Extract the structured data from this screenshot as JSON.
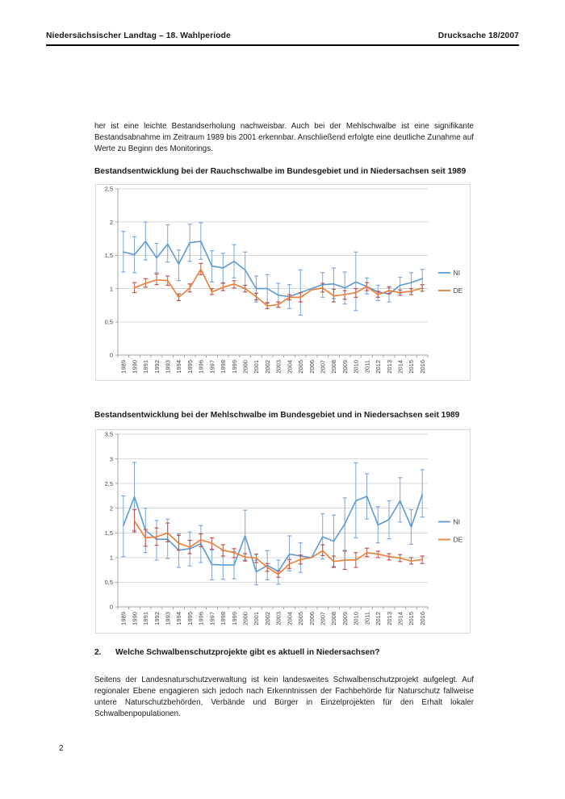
{
  "document": {
    "header_left": "Niedersächsischer Landtag – 18. Wahlperiode",
    "header_right": "Drucksache 18/2007",
    "intro_paragraph": "her ist eine leichte Bestandserholung nachweisbar. Auch bei der Mehlschwalbe ist eine signifikante Bestandsabnahme im Zeitraum 1989 bis 2001 erkennbar. Anschließend erfolgte eine deutliche Zunahme auf Werte zu Beginn des Monitorings.",
    "section2": {
      "number": "2.",
      "title": "Welche Schwalbenschutzprojekte gibt es aktuell in Niedersachsen?",
      "body": "Seitens der Landesnaturschutzverwaltung ist kein landesweites Schwalbenschutzprojekt aufgelegt. Auf regionaler Ebene engagieren sich jedoch nach Erkenntnissen der Fachbehörde für Naturschutz fallweise untere Naturschutzbehörden, Verbände und Bürger in Einzelprojekten für den Erhalt lokaler Schwalbenpopulationen."
    },
    "page_number": "2"
  },
  "colors": {
    "ni_line": "#5B9BD5",
    "ni_error": "#7EA6D8",
    "de_line": "#ED7D31",
    "de_error": "#C0504D",
    "grid": "#D9D9D9",
    "axis": "#A6A6A6",
    "chart_border": "#D9D9D9",
    "chart_text": "#404040",
    "text": "#1A1A1A"
  },
  "chart_data": [
    {
      "type": "line",
      "title": "Bestandsentwicklung bei der Rauchschwalbe im Bundesgebiet und in Niedersachsen seit 1989",
      "grid": true,
      "error_bars": true,
      "legend_position": "right",
      "ylim": [
        0,
        2.5
      ],
      "ytick_step": 0.5,
      "ytick_labels": [
        "0",
        "0,5",
        "1",
        "1,5",
        "2",
        "2,5"
      ],
      "categories": [
        "1989",
        "1990",
        "1991",
        "1992",
        "1993",
        "1994",
        "1995",
        "1996",
        "1997",
        "1998",
        "1999",
        "2000",
        "2001",
        "2002",
        "2003",
        "2004",
        "2005",
        "2006",
        "2007",
        "2008",
        "2009",
        "2010",
        "2011",
        "2012",
        "2013",
        "2014",
        "2015",
        "2016"
      ],
      "series": [
        {
          "name": "NI",
          "color": "#5B9BD5",
          "error_color": "#7EA6D8",
          "values": [
            1.55,
            1.51,
            1.71,
            1.46,
            1.67,
            1.37,
            1.69,
            1.71,
            1.34,
            1.31,
            1.41,
            1.28,
            1.0,
            1.0,
            0.9,
            0.88,
            0.94,
            1.0,
            1.06,
            1.07,
            1.01,
            1.1,
            1.03,
            0.95,
            0.92,
            1.05,
            1.09,
            1.15
          ],
          "lo": [
            1.25,
            1.24,
            1.43,
            1.24,
            1.4,
            1.12,
            1.41,
            1.44,
            1.1,
            1.09,
            1.16,
            1.0,
            0.8,
            0.78,
            0.72,
            0.7,
            0.6,
            null,
            0.87,
            0.85,
            0.77,
            0.67,
            0.92,
            0.82,
            0.8,
            0.93,
            0.95,
            1.0
          ],
          "hi": [
            1.86,
            1.78,
            2.0,
            1.68,
            1.96,
            1.58,
            1.97,
            1.99,
            1.57,
            1.53,
            1.66,
            1.55,
            1.19,
            1.21,
            1.08,
            1.06,
            1.28,
            null,
            1.24,
            1.31,
            1.25,
            1.55,
            1.16,
            1.05,
            1.03,
            1.17,
            1.24,
            1.29
          ]
        },
        {
          "name": "DE",
          "color": "#ED7D31",
          "error_color": "#C0504D",
          "values": [
            null,
            1.01,
            1.08,
            1.13,
            1.12,
            0.87,
            1.01,
            1.29,
            0.95,
            1.02,
            1.07,
            1.0,
            0.88,
            0.74,
            0.76,
            0.87,
            0.87,
            0.98,
            1.01,
            0.89,
            0.91,
            0.94,
            1.03,
            0.91,
            0.97,
            0.94,
            0.96,
            1.01
          ],
          "lo": [
            null,
            0.94,
            1.02,
            1.06,
            1.05,
            0.82,
            0.95,
            1.21,
            0.91,
            0.97,
            1.01,
            0.95,
            0.83,
            0.7,
            0.72,
            0.83,
            0.8,
            null,
            0.95,
            0.8,
            0.84,
            0.87,
            0.97,
            0.87,
            0.92,
            0.9,
            0.91,
            0.96
          ],
          "hi": [
            null,
            1.09,
            1.15,
            1.22,
            1.19,
            0.92,
            1.07,
            1.38,
            1.0,
            1.08,
            1.12,
            1.05,
            0.93,
            0.79,
            0.8,
            0.91,
            0.94,
            null,
            1.08,
            0.99,
            0.97,
            1.0,
            1.09,
            0.96,
            1.02,
            0.98,
            1.0,
            1.06
          ]
        }
      ]
    },
    {
      "type": "line",
      "title": "Bestandsentwicklung bei der Mehlschwalbe im Bundesgebiet und in Niedersachsen seit 1989",
      "grid": true,
      "error_bars": true,
      "legend_position": "right",
      "ylim": [
        0,
        3.5
      ],
      "ytick_step": 0.5,
      "ytick_labels": [
        "0",
        "0,5",
        "1",
        "1,5",
        "2",
        "2,5",
        "3",
        "3,5"
      ],
      "categories": [
        "1989",
        "1990",
        "1991",
        "1992",
        "1993",
        "1994",
        "1995",
        "1996",
        "1997",
        "1998",
        "1999",
        "2000",
        "2001",
        "2002",
        "2003",
        "2004",
        "2005",
        "2006",
        "2007",
        "2008",
        "2009",
        "2010",
        "2011",
        "2012",
        "2013",
        "2014",
        "2015",
        "2016"
      ],
      "series": [
        {
          "name": "NI",
          "color": "#5B9BD5",
          "error_color": "#7EA6D8",
          "values": [
            1.65,
            2.23,
            1.55,
            1.37,
            1.37,
            1.15,
            1.18,
            1.28,
            0.86,
            0.85,
            0.85,
            1.44,
            0.71,
            0.84,
            0.72,
            1.07,
            1.03,
            1.0,
            1.42,
            1.33,
            1.68,
            2.15,
            2.24,
            1.66,
            1.77,
            2.15,
            1.62,
            2.28
          ],
          "lo": [
            1.02,
            1.55,
            1.1,
            0.95,
            0.98,
            0.8,
            0.83,
            0.9,
            0.55,
            0.56,
            0.57,
            0.95,
            0.45,
            0.55,
            0.46,
            0.73,
            0.7,
            null,
            0.97,
            0.82,
            1.15,
            1.4,
            1.78,
            1.3,
            1.38,
            1.72,
            1.27,
            1.82
          ],
          "hi": [
            2.25,
            2.93,
            2.0,
            1.75,
            1.78,
            1.48,
            1.52,
            1.65,
            1.15,
            1.14,
            1.12,
            1.96,
            0.95,
            1.14,
            0.95,
            1.44,
            1.3,
            null,
            1.89,
            1.86,
            2.21,
            2.92,
            2.7,
            2.03,
            2.15,
            2.62,
            1.97,
            2.78
          ]
        },
        {
          "name": "DE",
          "color": "#ED7D31",
          "error_color": "#C0504D",
          "values": [
            null,
            1.74,
            1.4,
            1.42,
            1.5,
            1.29,
            1.21,
            1.36,
            1.29,
            1.15,
            1.1,
            1.01,
            0.99,
            0.8,
            0.66,
            0.87,
            0.96,
            1.0,
            1.14,
            0.92,
            0.95,
            0.95,
            1.1,
            1.07,
            1.02,
            0.99,
            0.93,
            0.96
          ],
          "lo": [
            null,
            1.52,
            1.23,
            1.25,
            1.32,
            1.15,
            1.08,
            1.22,
            1.17,
            1.03,
            1.0,
            0.93,
            0.9,
            0.72,
            0.6,
            0.78,
            0.87,
            null,
            1.04,
            0.8,
            0.76,
            0.8,
            1.02,
            1.0,
            0.95,
            0.92,
            0.87,
            0.88
          ],
          "hi": [
            null,
            1.97,
            1.57,
            1.6,
            1.7,
            1.45,
            1.35,
            1.48,
            1.4,
            1.26,
            1.18,
            1.08,
            1.07,
            0.88,
            0.73,
            0.96,
            1.05,
            null,
            1.26,
            1.03,
            1.13,
            1.1,
            1.19,
            1.13,
            1.08,
            1.06,
            1.0,
            1.03
          ]
        }
      ]
    }
  ]
}
